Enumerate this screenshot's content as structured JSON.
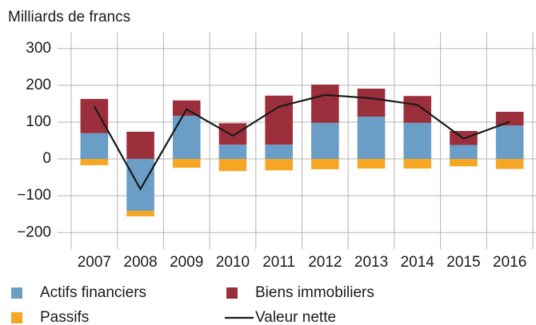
{
  "chart_data": {
    "type": "bar",
    "stacked": true,
    "title": "Milliards de francs",
    "categories": [
      "2007",
      "2008",
      "2009",
      "2010",
      "2011",
      "2012",
      "2013",
      "2014",
      "2015",
      "2016"
    ],
    "series": [
      {
        "name": "Actifs financiers",
        "color": "#6b9ec6",
        "type": "bar",
        "values": [
          70,
          -141,
          117,
          39,
          39,
          98,
          115,
          98,
          38,
          91
        ]
      },
      {
        "name": "Biens immobiliers",
        "color": "#9c2f3c",
        "type": "bar",
        "values": [
          93,
          74,
          42,
          58,
          133,
          104,
          76,
          73,
          38,
          37
        ]
      },
      {
        "name": "Passifs",
        "color": "#f5a623",
        "type": "bar",
        "values": [
          -17,
          -15,
          -24,
          -33,
          -31,
          -28,
          -26,
          -26,
          -20,
          -27
        ]
      },
      {
        "name": "Valeur nette",
        "color": "#1a1a1a",
        "type": "line",
        "values": [
          143,
          -82,
          135,
          63,
          142,
          174,
          165,
          147,
          55,
          101
        ]
      }
    ],
    "ylim": [
      -245,
      345
    ],
    "yticks": [
      {
        "value": -200,
        "label": "−200"
      },
      {
        "value": -100,
        "label": "−100"
      },
      0,
      100,
      200,
      300
    ],
    "grid": true
  }
}
